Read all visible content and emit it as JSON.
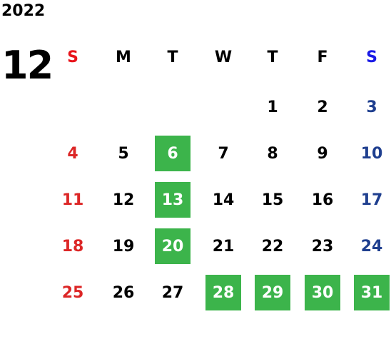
{
  "year": "2022",
  "month": "12",
  "weekdays": [
    "S",
    "M",
    "T",
    "W",
    "T",
    "F",
    "S"
  ],
  "weekday_colors": [
    "#e8141b",
    "#000000",
    "#000000",
    "#000000",
    "#000000",
    "#000000",
    "#1a1ae6"
  ],
  "day_colors": [
    "#dc2626",
    "#000000",
    "#000000",
    "#000000",
    "#000000",
    "#000000",
    "#1f3f8f"
  ],
  "highlight_color": "#3cb44b",
  "weeks": [
    [
      null,
      null,
      null,
      null,
      {
        "day": "1"
      },
      {
        "day": "2"
      },
      {
        "day": "3"
      }
    ],
    [
      {
        "day": "4"
      },
      {
        "day": "5"
      },
      {
        "day": "6",
        "highlight": true
      },
      {
        "day": "7"
      },
      {
        "day": "8"
      },
      {
        "day": "9"
      },
      {
        "day": "10"
      }
    ],
    [
      {
        "day": "11"
      },
      {
        "day": "12"
      },
      {
        "day": "13",
        "highlight": true
      },
      {
        "day": "14"
      },
      {
        "day": "15"
      },
      {
        "day": "16"
      },
      {
        "day": "17"
      }
    ],
    [
      {
        "day": "18"
      },
      {
        "day": "19"
      },
      {
        "day": "20",
        "highlight": true
      },
      {
        "day": "21"
      },
      {
        "day": "22"
      },
      {
        "day": "23"
      },
      {
        "day": "24"
      }
    ],
    [
      {
        "day": "25"
      },
      {
        "day": "26"
      },
      {
        "day": "27"
      },
      {
        "day": "28",
        "highlight": true
      },
      {
        "day": "29",
        "highlight": true
      },
      {
        "day": "30",
        "highlight": true
      },
      {
        "day": "31",
        "highlight": true
      }
    ]
  ]
}
